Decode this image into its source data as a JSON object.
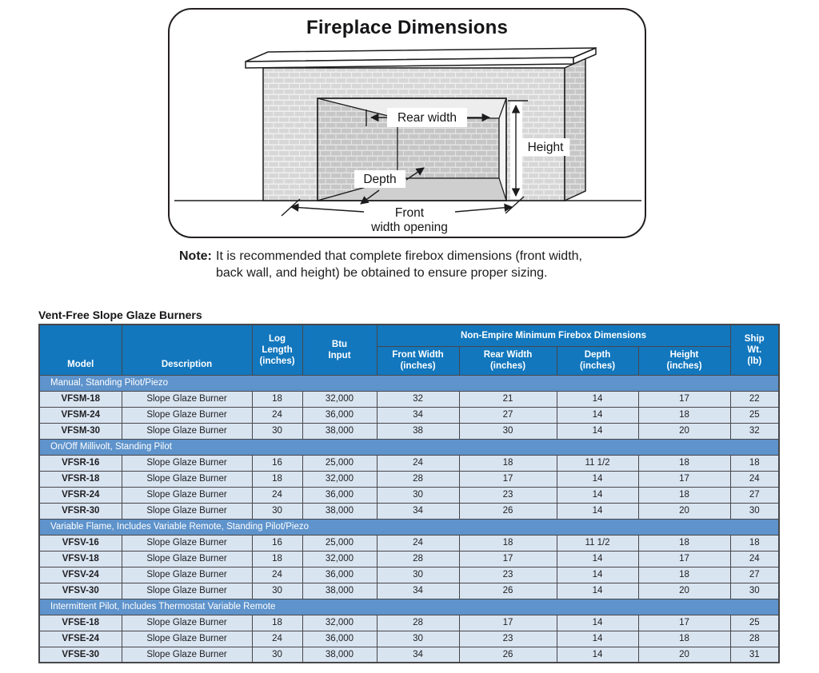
{
  "diagram": {
    "title": "Fireplace Dimensions",
    "labels": {
      "rear_width": "Rear width",
      "height": "Height",
      "depth": "Depth",
      "front_line1": "Front",
      "front_line2": "width opening"
    },
    "note_label": "Note:",
    "note_text": "It is recommended that complete firebox dimensions (front width, back wall, and height) be obtained to ensure proper sizing."
  },
  "table": {
    "title": "Vent-Free Slope Glaze Burners",
    "colors": {
      "header_bg": "#1277BD",
      "section_bg": "#5E93CB",
      "row_bg": "#D9E4F1",
      "border": "#47474A"
    },
    "header": {
      "model": "Model",
      "description": "Description",
      "log_length": "Log\nLength\n(inches)",
      "btu_input": "Btu\nInput",
      "group": "Non-Empire Minimum Firebox Dimensions",
      "front_width": "Front Width\n(inches)",
      "rear_width": "Rear Width\n(inches)",
      "depth": "Depth\n(inches)",
      "height": "Height\n(inches)",
      "ship_wt": "Ship\nWt.\n(lb)"
    },
    "row_keys": [
      "model",
      "description",
      "log_length",
      "btu_input",
      "front_width",
      "rear_width",
      "depth",
      "height",
      "ship_wt"
    ],
    "sections": [
      {
        "label": "Manual, Standing Pilot/Piezo",
        "rows": [
          {
            "model": "VFSM-18",
            "description": "Slope Glaze Burner",
            "log_length": "18",
            "btu_input": "32,000",
            "front_width": "32",
            "rear_width": "21",
            "depth": "14",
            "height": "17",
            "ship_wt": "22"
          },
          {
            "model": "VFSM-24",
            "description": "Slope Glaze Burner",
            "log_length": "24",
            "btu_input": "36,000",
            "front_width": "34",
            "rear_width": "27",
            "depth": "14",
            "height": "18",
            "ship_wt": "25"
          },
          {
            "model": "VFSM-30",
            "description": "Slope Glaze Burner",
            "log_length": "30",
            "btu_input": "38,000",
            "front_width": "38",
            "rear_width": "30",
            "depth": "14",
            "height": "20",
            "ship_wt": "32"
          }
        ]
      },
      {
        "label": "On/Off Millivolt, Standing Pilot",
        "rows": [
          {
            "model": "VFSR-16",
            "description": "Slope Glaze Burner",
            "log_length": "16",
            "btu_input": "25,000",
            "front_width": "24",
            "rear_width": "18",
            "depth": "11 1/2",
            "height": "18",
            "ship_wt": "18"
          },
          {
            "model": "VFSR-18",
            "description": "Slope Glaze Burner",
            "log_length": "18",
            "btu_input": "32,000",
            "front_width": "28",
            "rear_width": "17",
            "depth": "14",
            "height": "17",
            "ship_wt": "24"
          },
          {
            "model": "VFSR-24",
            "description": "Slope Glaze Burner",
            "log_length": "24",
            "btu_input": "36,000",
            "front_width": "30",
            "rear_width": "23",
            "depth": "14",
            "height": "18",
            "ship_wt": "27"
          },
          {
            "model": "VFSR-30",
            "description": "Slope Glaze Burner",
            "log_length": "30",
            "btu_input": "38,000",
            "front_width": "34",
            "rear_width": "26",
            "depth": "14",
            "height": "20",
            "ship_wt": "30"
          }
        ]
      },
      {
        "label": "Variable Flame, Includes Variable Remote, Standing Pilot/Piezo",
        "rows": [
          {
            "model": "VFSV-16",
            "description": "Slope Glaze Burner",
            "log_length": "16",
            "btu_input": "25,000",
            "front_width": "24",
            "rear_width": "18",
            "depth": "11 1/2",
            "height": "18",
            "ship_wt": "18"
          },
          {
            "model": "VFSV-18",
            "description": "Slope Glaze Burner",
            "log_length": "18",
            "btu_input": "32,000",
            "front_width": "28",
            "rear_width": "17",
            "depth": "14",
            "height": "17",
            "ship_wt": "24"
          },
          {
            "model": "VFSV-24",
            "description": "Slope Glaze Burner",
            "log_length": "24",
            "btu_input": "36,000",
            "front_width": "30",
            "rear_width": "23",
            "depth": "14",
            "height": "18",
            "ship_wt": "27"
          },
          {
            "model": "VFSV-30",
            "description": "Slope Glaze Burner",
            "log_length": "30",
            "btu_input": "38,000",
            "front_width": "34",
            "rear_width": "26",
            "depth": "14",
            "height": "20",
            "ship_wt": "30"
          }
        ]
      },
      {
        "label": "Intermittent Pilot, Includes Thermostat Variable Remote",
        "rows": [
          {
            "model": "VFSE-18",
            "description": "Slope Glaze Burner",
            "log_length": "18",
            "btu_input": "32,000",
            "front_width": "28",
            "rear_width": "17",
            "depth": "14",
            "height": "17",
            "ship_wt": "25"
          },
          {
            "model": "VFSE-24",
            "description": "Slope Glaze Burner",
            "log_length": "24",
            "btu_input": "36,000",
            "front_width": "30",
            "rear_width": "23",
            "depth": "14",
            "height": "18",
            "ship_wt": "28"
          },
          {
            "model": "VFSE-30",
            "description": "Slope Glaze Burner",
            "log_length": "30",
            "btu_input": "38,000",
            "front_width": "34",
            "rear_width": "26",
            "depth": "14",
            "height": "20",
            "ship_wt": "31"
          }
        ]
      }
    ]
  }
}
